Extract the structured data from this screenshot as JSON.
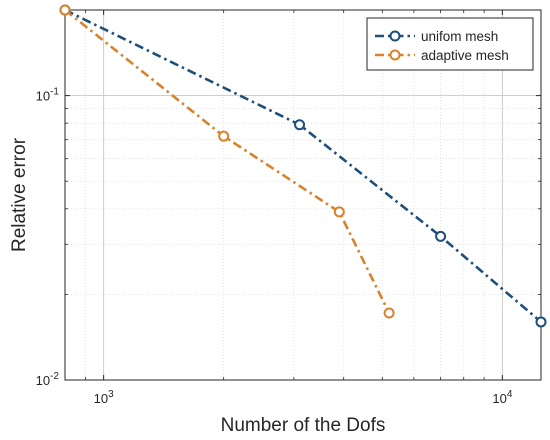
{
  "chart_data": {
    "type": "line",
    "title": "",
    "xlabel": "Number of the  Dofs",
    "ylabel": "Relative error",
    "xscale": "log",
    "yscale": "log",
    "xlim": [
      800,
      12500
    ],
    "ylim": [
      0.01,
      0.2
    ],
    "grid": true,
    "legend_position": "top-right",
    "x_ticks": [
      {
        "value": 1000,
        "base": "10",
        "exp": "3"
      },
      {
        "value": 10000,
        "base": "10",
        "exp": "4"
      }
    ],
    "y_ticks": [
      {
        "value": 0.01,
        "base": "10",
        "exp": "-2"
      },
      {
        "value": 0.1,
        "base": "10",
        "exp": "-1"
      }
    ],
    "series": [
      {
        "name": "unifom mesh",
        "color": "#1f4e79",
        "x": [
          800,
          3100,
          7000,
          12500
        ],
        "y": [
          0.2,
          0.079,
          0.032,
          0.016
        ]
      },
      {
        "name": "adaptive mesh",
        "color": "#d9822b",
        "x": [
          800,
          2000,
          3900,
          5200
        ],
        "y": [
          0.2,
          0.072,
          0.039,
          0.0172
        ]
      }
    ]
  }
}
